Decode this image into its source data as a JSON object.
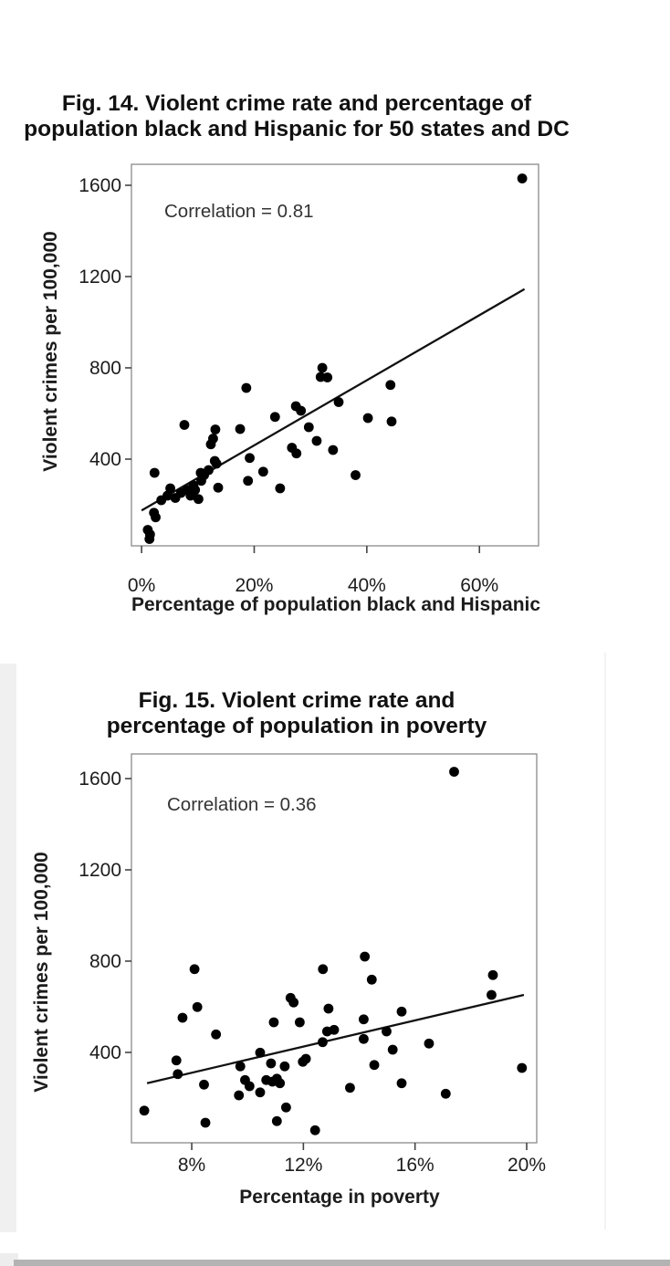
{
  "page_title": "Violent crime scatter plots",
  "chart_data": [
    {
      "type": "scatter",
      "figure_id": "fig14",
      "title": "Fig. 14. Violent crime rate and percentage of population black and Hispanic for 50 states and DC",
      "title_lines": [
        "Fig. 14. Violent crime rate and percentage of",
        "population black and Hispanic for 50 states and DC"
      ],
      "annotation": "Correlation = 0.81",
      "correlation": 0.81,
      "xlabel": "Percentage of population black and Hispanic",
      "ylabel": "Violent crimes per 100,000",
      "x_ticks": [
        {
          "value": 0,
          "label": "0%"
        },
        {
          "value": 20,
          "label": "20%"
        },
        {
          "value": 40,
          "label": "40%"
        },
        {
          "value": 60,
          "label": "60%"
        }
      ],
      "y_ticks": [
        {
          "value": 400,
          "label": "400"
        },
        {
          "value": 800,
          "label": "800"
        },
        {
          "value": 1200,
          "label": "1200"
        },
        {
          "value": 1600,
          "label": "1600"
        }
      ],
      "xlim": [
        -1.8,
        70.5
      ],
      "ylim": [
        20,
        1692
      ],
      "grid": false,
      "legend": "none",
      "marker_color": "#000000",
      "trendline": {
        "x1": 0,
        "y1": 175,
        "x2": 68,
        "y2": 1145
      },
      "points": [
        [
          1.1,
          90
        ],
        [
          1.5,
          70
        ],
        [
          1.4,
          50
        ],
        [
          2.2,
          165
        ],
        [
          2.5,
          145
        ],
        [
          2.3,
          340
        ],
        [
          3.5,
          220
        ],
        [
          4.6,
          240
        ],
        [
          5.1,
          272
        ],
        [
          6.0,
          230
        ],
        [
          7.0,
          252
        ],
        [
          7.6,
          550
        ],
        [
          8.1,
          265
        ],
        [
          8.7,
          240
        ],
        [
          9.0,
          258
        ],
        [
          9.2,
          285
        ],
        [
          9.5,
          265
        ],
        [
          10.1,
          225
        ],
        [
          10.5,
          340
        ],
        [
          10.6,
          305
        ],
        [
          11.1,
          330
        ],
        [
          11.9,
          352
        ],
        [
          12.3,
          465
        ],
        [
          12.7,
          490
        ],
        [
          13.0,
          392
        ],
        [
          13.1,
          530
        ],
        [
          13.3,
          380
        ],
        [
          13.6,
          275
        ],
        [
          17.5,
          532
        ],
        [
          18.6,
          712
        ],
        [
          18.9,
          305
        ],
        [
          19.2,
          405
        ],
        [
          21.6,
          345
        ],
        [
          23.7,
          585
        ],
        [
          24.6,
          272
        ],
        [
          26.7,
          450
        ],
        [
          27.4,
          632
        ],
        [
          27.5,
          425
        ],
        [
          28.3,
          612
        ],
        [
          29.7,
          540
        ],
        [
          31.1,
          480
        ],
        [
          31.8,
          760
        ],
        [
          32.1,
          800
        ],
        [
          33.0,
          758
        ],
        [
          34.0,
          440
        ],
        [
          35.0,
          650
        ],
        [
          38.0,
          330
        ],
        [
          40.2,
          580
        ],
        [
          44.2,
          725
        ],
        [
          44.4,
          565
        ],
        [
          67.6,
          1630
        ]
      ]
    },
    {
      "type": "scatter",
      "figure_id": "fig15",
      "title": "Fig. 15. Violent crime rate and percentage of population in poverty",
      "title_lines": [
        "Fig. 15. Violent crime rate and",
        "percentage of population in poverty"
      ],
      "annotation": "Correlation = 0.36",
      "correlation": 0.36,
      "xlabel": "Percentage in poverty",
      "ylabel": "Violent crimes per 100,000",
      "x_ticks": [
        {
          "value": 8,
          "label": "8%"
        },
        {
          "value": 12,
          "label": "12%"
        },
        {
          "value": 16,
          "label": "16%"
        },
        {
          "value": 20,
          "label": "20%"
        }
      ],
      "y_ticks": [
        {
          "value": 400,
          "label": "400"
        },
        {
          "value": 800,
          "label": "800"
        },
        {
          "value": 1200,
          "label": "1200"
        },
        {
          "value": 1600,
          "label": "1600"
        }
      ],
      "xlim": [
        5.84,
        20.36
      ],
      "ylim": [
        4,
        1708
      ],
      "grid": false,
      "legend": "none",
      "marker_color": "#000000",
      "trendline": {
        "x1": 6.4,
        "y1": 265,
        "x2": 19.9,
        "y2": 652
      },
      "points": [
        [
          6.3,
          145
        ],
        [
          7.45,
          365
        ],
        [
          7.5,
          305
        ],
        [
          7.67,
          552
        ],
        [
          8.1,
          765
        ],
        [
          8.2,
          599
        ],
        [
          8.44,
          259
        ],
        [
          8.49,
          92
        ],
        [
          8.87,
          479
        ],
        [
          9.69,
          212
        ],
        [
          9.74,
          339
        ],
        [
          9.91,
          279
        ],
        [
          10.07,
          252
        ],
        [
          10.45,
          399
        ],
        [
          10.45,
          225
        ],
        [
          10.67,
          279
        ],
        [
          10.84,
          352
        ],
        [
          10.89,
          272
        ],
        [
          10.94,
          532
        ],
        [
          11.05,
          285
        ],
        [
          11.05,
          99
        ],
        [
          11.16,
          265
        ],
        [
          11.33,
          339
        ],
        [
          11.38,
          159
        ],
        [
          11.54,
          639
        ],
        [
          11.65,
          619
        ],
        [
          11.87,
          532
        ],
        [
          11.98,
          359
        ],
        [
          12.09,
          372
        ],
        [
          12.42,
          59
        ],
        [
          12.69,
          445
        ],
        [
          12.7,
          765
        ],
        [
          12.85,
          492
        ],
        [
          12.9,
          592
        ],
        [
          13.1,
          499
        ],
        [
          13.67,
          245
        ],
        [
          14.16,
          545
        ],
        [
          14.16,
          459
        ],
        [
          14.2,
          820
        ],
        [
          14.45,
          719
        ],
        [
          14.54,
          345
        ],
        [
          14.98,
          492
        ],
        [
          15.2,
          412
        ],
        [
          15.52,
          579
        ],
        [
          15.52,
          265
        ],
        [
          16.5,
          439
        ],
        [
          17.1,
          219
        ],
        [
          17.4,
          1630
        ],
        [
          18.74,
          652
        ],
        [
          18.79,
          739
        ],
        [
          19.83,
          332
        ]
      ]
    }
  ],
  "colors": {
    "background": "#ffffff",
    "marker": "#000000",
    "trend_line": "#111111",
    "plot_border": "#8a8a8a",
    "tick": "#444444",
    "text": "#1c1c1c",
    "annotation_text": "#333333",
    "scan_strip_light": "#f0f0f0",
    "scan_strip_dark": "#b3b3b3"
  }
}
